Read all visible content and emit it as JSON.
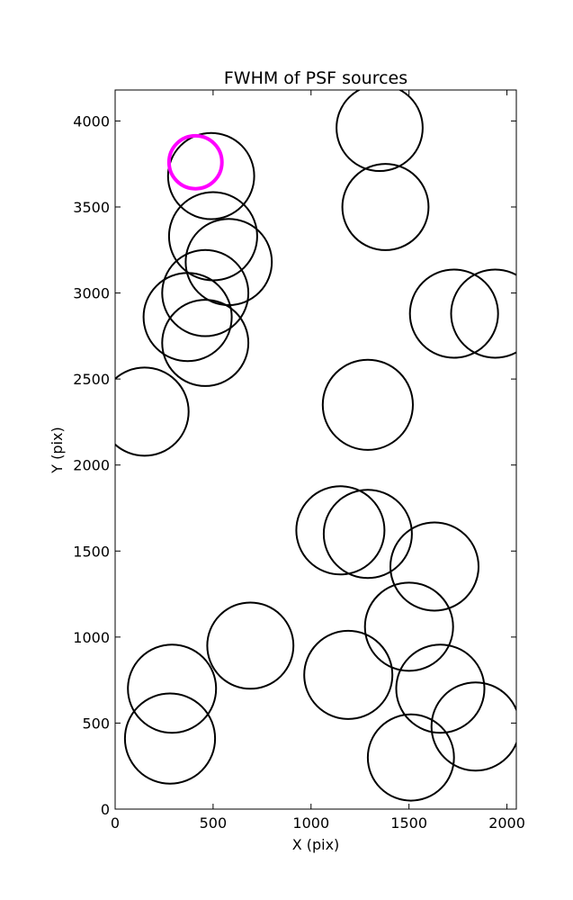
{
  "chart_data": {
    "type": "scatter",
    "title": "FWHM of PSF sources",
    "xlabel": "X (pix)",
    "ylabel": "Y (pix)",
    "xlim": [
      0,
      2048
    ],
    "ylim": [
      0,
      4180
    ],
    "xticks": [
      0,
      500,
      1000,
      1500,
      2000
    ],
    "yticks": [
      0,
      500,
      1000,
      1500,
      2000,
      2500,
      3000,
      3500,
      4000
    ],
    "grid": false,
    "marker": "circle",
    "colors": {
      "default": "#000000",
      "highlight": "#ff00ff"
    },
    "sources": [
      {
        "x": 1350,
        "y": 3960,
        "r": 220
      },
      {
        "x": 1380,
        "y": 3500,
        "r": 220
      },
      {
        "x": 490,
        "y": 3680,
        "r": 220
      },
      {
        "x": 500,
        "y": 3330,
        "r": 225
      },
      {
        "x": 580,
        "y": 3180,
        "r": 220
      },
      {
        "x": 460,
        "y": 3000,
        "r": 220
      },
      {
        "x": 370,
        "y": 2860,
        "r": 225
      },
      {
        "x": 460,
        "y": 2710,
        "r": 220
      },
      {
        "x": 150,
        "y": 2310,
        "r": 225
      },
      {
        "x": 1730,
        "y": 2880,
        "r": 225
      },
      {
        "x": 1940,
        "y": 2880,
        "r": 225
      },
      {
        "x": 1290,
        "y": 2350,
        "r": 230
      },
      {
        "x": 1150,
        "y": 1620,
        "r": 225
      },
      {
        "x": 1290,
        "y": 1600,
        "r": 225
      },
      {
        "x": 1630,
        "y": 1410,
        "r": 225
      },
      {
        "x": 690,
        "y": 950,
        "r": 220
      },
      {
        "x": 1500,
        "y": 1060,
        "r": 225
      },
      {
        "x": 1190,
        "y": 780,
        "r": 225
      },
      {
        "x": 290,
        "y": 700,
        "r": 225
      },
      {
        "x": 1660,
        "y": 700,
        "r": 225
      },
      {
        "x": 280,
        "y": 410,
        "r": 230
      },
      {
        "x": 1840,
        "y": 480,
        "r": 225
      },
      {
        "x": 1510,
        "y": 300,
        "r": 220
      },
      {
        "x": 410,
        "y": 3760,
        "r": 135,
        "highlight": true
      }
    ]
  }
}
